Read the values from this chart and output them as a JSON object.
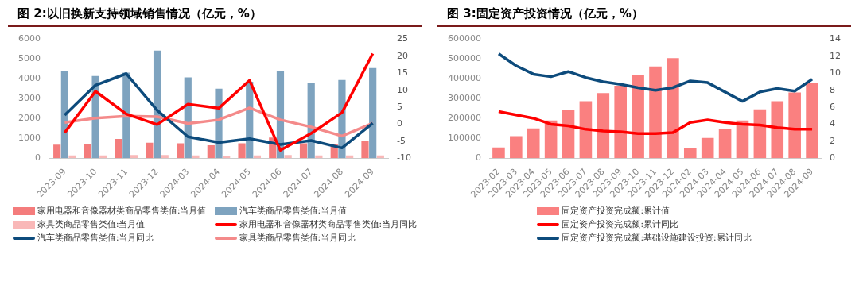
{
  "chart_data": [
    {
      "type": "bar",
      "title": "图 2:以旧换新支持领域销售情况（亿元，%）",
      "categories": [
        "2023-09",
        "2023-10",
        "2023-11",
        "2023-12",
        "2024-03",
        "2024-04",
        "2024-05",
        "2024-06",
        "2024-07",
        "2024-08",
        "2024-09"
      ],
      "series": [
        {
          "name": "家用电器和音像器材类商品零售类值:当月值",
          "color": "#f47c7c",
          "values": [
            680,
            710,
            970,
            780,
            750,
            650,
            750,
            1040,
            750,
            710,
            850
          ]
        },
        {
          "name": "汽车类商品零售类值:当月值",
          "color": "#7ea3bf",
          "values": [
            4390,
            4150,
            4320,
            5430,
            4080,
            3510,
            3860,
            4390,
            3800,
            3950,
            4550
          ]
        },
        {
          "name": "家具类商品零售类值:当月值",
          "color": "#f9b8b8",
          "values": [
            140,
            140,
            160,
            160,
            140,
            120,
            140,
            160,
            140,
            140,
            140
          ]
        },
        {
          "name": "家用电器和音像器材类商品零售类值:当月同比",
          "type": "line",
          "axis": "y2",
          "color": "#ff0000",
          "values": [
            -2.5,
            9.7,
            3.0,
            -0.1,
            5.9,
            4.7,
            12.9,
            -7.7,
            -2.7,
            3.4,
            20.8
          ]
        },
        {
          "name": "汽车类商品零售类值:当月同比",
          "type": "line",
          "axis": "y2",
          "color": "#0d4b7c",
          "values": [
            2.7,
            11.5,
            14.9,
            4.1,
            -3.7,
            -5.4,
            -4.3,
            -6.0,
            -4.8,
            -7.0,
            0.3
          ]
        },
        {
          "name": "家具类商品零售类值:当月同比",
          "type": "line",
          "axis": "y2",
          "color": "#f48a8a",
          "values": [
            0.5,
            1.8,
            2.4,
            2.2,
            0.2,
            1.3,
            4.8,
            1.3,
            -0.8,
            -3.5,
            0.3
          ]
        }
      ],
      "ylim": [
        0,
        6000
      ],
      "yticks": [
        0,
        1000,
        2000,
        3000,
        4000,
        5000,
        6000
      ],
      "y2lim": [
        -10,
        25
      ],
      "y2ticks": [
        -10,
        -5,
        0,
        5,
        10,
        15,
        20,
        25
      ],
      "grid": false,
      "legend": "bottom",
      "marker": "none"
    },
    {
      "type": "bar",
      "title": "图 3:固定资产投资情况（亿元，%）",
      "categories": [
        "2023-02",
        "2023-03",
        "2023-04",
        "2023-05",
        "2023-06",
        "2023-07",
        "2023-08",
        "2023-09",
        "2023-10",
        "2023-11",
        "2023-12",
        "2024-02",
        "2024-03",
        "2024-04",
        "2024-05",
        "2024-06",
        "2024-07",
        "2024-08",
        "2024-09"
      ],
      "series": [
        {
          "name": "固定资产投资完成额:累计值",
          "color": "#fa8080",
          "values": [
            54000,
            111000,
            150000,
            190000,
            244000,
            287000,
            329000,
            366000,
            422000,
            463000,
            505000,
            53000,
            102000,
            145000,
            190000,
            246000,
            288000,
            332000,
            382000
          ]
        },
        {
          "name": "固定资产投资完成额:累计同比",
          "type": "line",
          "axis": "y2",
          "color": "#ff0000",
          "values": [
            5.5,
            5.1,
            4.7,
            4.0,
            3.8,
            3.4,
            3.2,
            3.1,
            2.9,
            2.9,
            3.0,
            4.2,
            4.5,
            4.2,
            4.0,
            3.9,
            3.6,
            3.4,
            3.4
          ]
        },
        {
          "name": "固定资产投资完成额:基础设施建设投资:累计同比",
          "type": "line",
          "axis": "y2",
          "color": "#0d4b7c",
          "values": [
            12.3,
            10.9,
            9.9,
            9.6,
            10.2,
            9.5,
            9.0,
            8.7,
            8.3,
            8.0,
            8.3,
            9.1,
            8.9,
            7.8,
            6.7,
            7.8,
            8.2,
            7.9,
            9.3
          ]
        }
      ],
      "ylim": [
        0,
        600000
      ],
      "yticks": [
        0,
        100000,
        200000,
        300000,
        400000,
        500000,
        600000
      ],
      "y2lim": [
        0,
        14
      ],
      "y2ticks": [
        0,
        2,
        4,
        6,
        8,
        10,
        12,
        14
      ],
      "grid": false,
      "legend": "bottom",
      "marker": "none"
    }
  ]
}
